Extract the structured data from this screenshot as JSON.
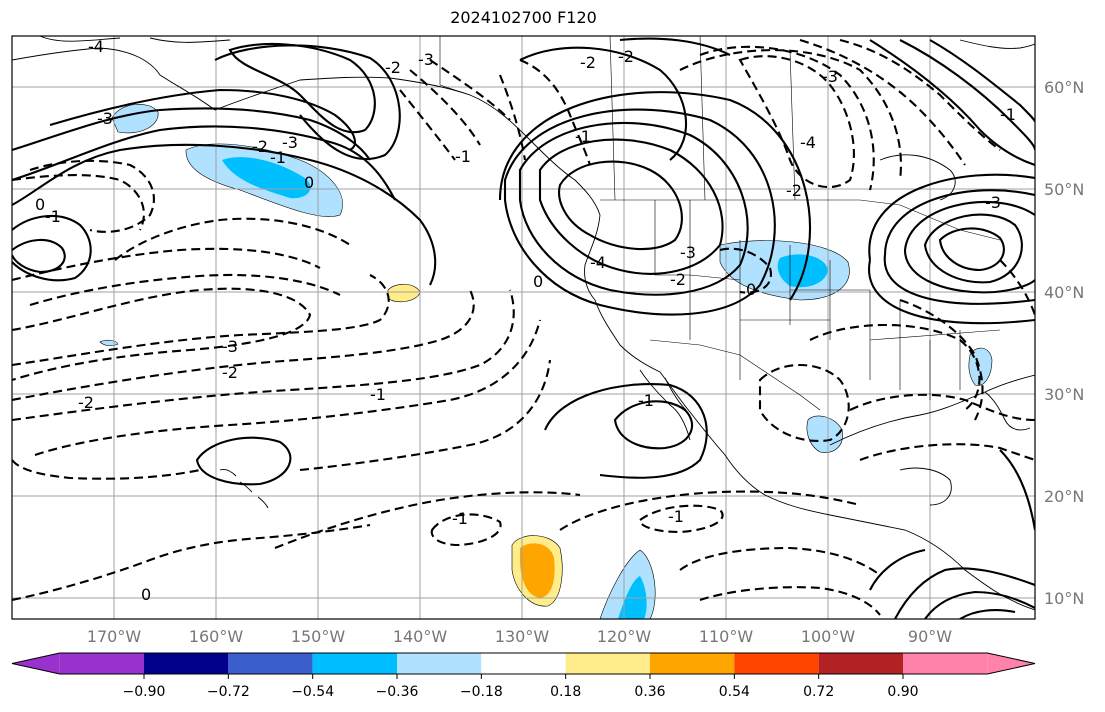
{
  "title": "2024102700 F120",
  "map": {
    "lon_ticks": [
      "170°W",
      "160°W",
      "150°W",
      "140°W",
      "130°W",
      "120°W",
      "110°W",
      "100°W",
      "90°W"
    ],
    "lat_ticks": [
      "60°N",
      "50°N",
      "40°N",
      "30°N",
      "20°N",
      "10°N"
    ],
    "contour_labels": [
      "-4",
      "-3",
      "-3",
      "-2",
      "-1",
      "0",
      "0",
      "-1",
      "-3",
      "-2",
      "-2",
      "-1",
      "-1",
      "-1",
      "0",
      "-3",
      "-2",
      "-1",
      "-1",
      "0",
      "-4",
      "-2",
      "-2",
      "-3",
      "-4",
      "-3",
      "-1",
      "-2",
      "-3",
      "0",
      "-2",
      "-1"
    ]
  },
  "colorbar": {
    "colors": [
      "#9932cc",
      "#00008b",
      "#3a5fcd",
      "#00bfff",
      "#b0e2ff",
      "#ffffff",
      "#ffec8b",
      "#ffa500",
      "#ff4500",
      "#b22222",
      "#ff82ab"
    ],
    "labels": [
      "−0.90",
      "−0.72",
      "−0.54",
      "−0.36",
      "−0.18",
      "0.18",
      "0.36",
      "0.54",
      "0.72",
      "0.90"
    ]
  }
}
